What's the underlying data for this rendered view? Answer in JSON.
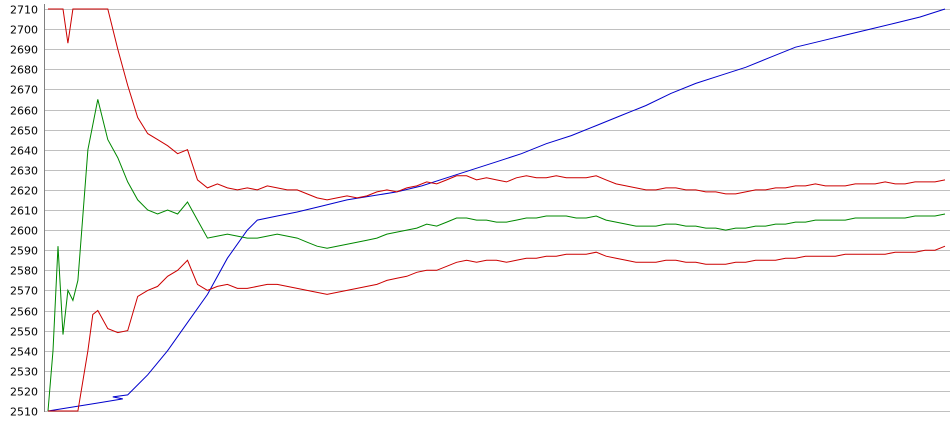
{
  "chart_data": {
    "type": "line",
    "title": "",
    "xlabel": "",
    "ylabel": "",
    "ylim": [
      2510,
      2710
    ],
    "xlim": [
      0,
      180
    ],
    "grid": true,
    "yticks": [
      2510,
      2520,
      2530,
      2540,
      2550,
      2560,
      2570,
      2580,
      2590,
      2600,
      2610,
      2620,
      2630,
      2640,
      2650,
      2660,
      2670,
      2680,
      2690,
      2700,
      2710
    ],
    "series": [
      {
        "color": "#0000cc",
        "points": [
          [
            0,
            2510
          ],
          [
            5,
            2512
          ],
          [
            10,
            2514
          ],
          [
            15,
            2516
          ],
          [
            13,
            2517
          ],
          [
            16,
            2518
          ],
          [
            20,
            2528
          ],
          [
            24,
            2540
          ],
          [
            28,
            2554
          ],
          [
            32,
            2568
          ],
          [
            36,
            2586
          ],
          [
            40,
            2600
          ],
          [
            42,
            2605
          ],
          [
            46,
            2607
          ],
          [
            50,
            2609
          ],
          [
            55,
            2612
          ],
          [
            60,
            2615
          ],
          [
            65,
            2617
          ],
          [
            70,
            2619
          ],
          [
            75,
            2622
          ],
          [
            80,
            2626
          ],
          [
            85,
            2630
          ],
          [
            90,
            2634
          ],
          [
            95,
            2638
          ],
          [
            100,
            2643
          ],
          [
            105,
            2647
          ],
          [
            110,
            2652
          ],
          [
            115,
            2657
          ],
          [
            120,
            2662
          ],
          [
            125,
            2668
          ],
          [
            130,
            2673
          ],
          [
            135,
            2677
          ],
          [
            140,
            2681
          ],
          [
            145,
            2686
          ],
          [
            150,
            2691
          ],
          [
            155,
            2694
          ],
          [
            160,
            2697
          ],
          [
            165,
            2700
          ],
          [
            170,
            2703
          ],
          [
            175,
            2706
          ],
          [
            180,
            2710
          ]
        ]
      },
      {
        "color": "#cc0000",
        "points": [
          [
            0,
            2710
          ],
          [
            3,
            2710
          ],
          [
            4,
            2693
          ],
          [
            5,
            2710
          ],
          [
            12,
            2710
          ],
          [
            14,
            2690
          ],
          [
            16,
            2672
          ],
          [
            18,
            2656
          ],
          [
            20,
            2648
          ],
          [
            22,
            2645
          ],
          [
            24,
            2642
          ],
          [
            26,
            2638
          ],
          [
            28,
            2640
          ],
          [
            30,
            2625
          ],
          [
            32,
            2621
          ],
          [
            34,
            2623
          ],
          [
            36,
            2621
          ],
          [
            38,
            2620
          ],
          [
            40,
            2621
          ],
          [
            42,
            2620
          ],
          [
            44,
            2622
          ],
          [
            46,
            2621
          ],
          [
            48,
            2620
          ],
          [
            50,
            2620
          ],
          [
            52,
            2618
          ],
          [
            54,
            2616
          ],
          [
            56,
            2615
          ],
          [
            58,
            2616
          ],
          [
            60,
            2617
          ],
          [
            62,
            2616
          ],
          [
            64,
            2617
          ],
          [
            66,
            2619
          ],
          [
            68,
            2620
          ],
          [
            70,
            2619
          ],
          [
            72,
            2621
          ],
          [
            74,
            2622
          ],
          [
            76,
            2624
          ],
          [
            78,
            2623
          ],
          [
            80,
            2625
          ],
          [
            82,
            2627
          ],
          [
            84,
            2627
          ],
          [
            86,
            2625
          ],
          [
            88,
            2626
          ],
          [
            90,
            2625
          ],
          [
            92,
            2624
          ],
          [
            94,
            2626
          ],
          [
            96,
            2627
          ],
          [
            98,
            2626
          ],
          [
            100,
            2626
          ],
          [
            102,
            2627
          ],
          [
            104,
            2626
          ],
          [
            106,
            2626
          ],
          [
            108,
            2626
          ],
          [
            110,
            2627
          ],
          [
            112,
            2625
          ],
          [
            114,
            2623
          ],
          [
            116,
            2622
          ],
          [
            118,
            2621
          ],
          [
            120,
            2620
          ],
          [
            122,
            2620
          ],
          [
            124,
            2621
          ],
          [
            126,
            2621
          ],
          [
            128,
            2620
          ],
          [
            130,
            2620
          ],
          [
            132,
            2619
          ],
          [
            134,
            2619
          ],
          [
            136,
            2618
          ],
          [
            138,
            2618
          ],
          [
            140,
            2619
          ],
          [
            142,
            2620
          ],
          [
            144,
            2620
          ],
          [
            146,
            2621
          ],
          [
            148,
            2621
          ],
          [
            150,
            2622
          ],
          [
            152,
            2622
          ],
          [
            154,
            2623
          ],
          [
            156,
            2622
          ],
          [
            158,
            2622
          ],
          [
            160,
            2622
          ],
          [
            162,
            2623
          ],
          [
            164,
            2623
          ],
          [
            166,
            2623
          ],
          [
            168,
            2624
          ],
          [
            170,
            2623
          ],
          [
            172,
            2623
          ],
          [
            174,
            2624
          ],
          [
            176,
            2624
          ],
          [
            178,
            2624
          ],
          [
            180,
            2625
          ]
        ]
      },
      {
        "color": "#008800",
        "points": [
          [
            0,
            2510
          ],
          [
            1,
            2540
          ],
          [
            2,
            2592
          ],
          [
            3,
            2548
          ],
          [
            4,
            2570
          ],
          [
            5,
            2565
          ],
          [
            6,
            2575
          ],
          [
            8,
            2640
          ],
          [
            10,
            2665
          ],
          [
            12,
            2645
          ],
          [
            14,
            2636
          ],
          [
            16,
            2624
          ],
          [
            18,
            2615
          ],
          [
            20,
            2610
          ],
          [
            22,
            2608
          ],
          [
            24,
            2610
          ],
          [
            26,
            2608
          ],
          [
            28,
            2614
          ],
          [
            30,
            2605
          ],
          [
            32,
            2596
          ],
          [
            34,
            2597
          ],
          [
            36,
            2598
          ],
          [
            38,
            2597
          ],
          [
            40,
            2596
          ],
          [
            42,
            2596
          ],
          [
            44,
            2597
          ],
          [
            46,
            2598
          ],
          [
            48,
            2597
          ],
          [
            50,
            2596
          ],
          [
            52,
            2594
          ],
          [
            54,
            2592
          ],
          [
            56,
            2591
          ],
          [
            58,
            2592
          ],
          [
            60,
            2593
          ],
          [
            62,
            2594
          ],
          [
            64,
            2595
          ],
          [
            66,
            2596
          ],
          [
            68,
            2598
          ],
          [
            70,
            2599
          ],
          [
            72,
            2600
          ],
          [
            74,
            2601
          ],
          [
            76,
            2603
          ],
          [
            78,
            2602
          ],
          [
            80,
            2604
          ],
          [
            82,
            2606
          ],
          [
            84,
            2606
          ],
          [
            86,
            2605
          ],
          [
            88,
            2605
          ],
          [
            90,
            2604
          ],
          [
            92,
            2604
          ],
          [
            94,
            2605
          ],
          [
            96,
            2606
          ],
          [
            98,
            2606
          ],
          [
            100,
            2607
          ],
          [
            102,
            2607
          ],
          [
            104,
            2607
          ],
          [
            106,
            2606
          ],
          [
            108,
            2606
          ],
          [
            110,
            2607
          ],
          [
            112,
            2605
          ],
          [
            114,
            2604
          ],
          [
            116,
            2603
          ],
          [
            118,
            2602
          ],
          [
            120,
            2602
          ],
          [
            122,
            2602
          ],
          [
            124,
            2603
          ],
          [
            126,
            2603
          ],
          [
            128,
            2602
          ],
          [
            130,
            2602
          ],
          [
            132,
            2601
          ],
          [
            134,
            2601
          ],
          [
            136,
            2600
          ],
          [
            138,
            2601
          ],
          [
            140,
            2601
          ],
          [
            142,
            2602
          ],
          [
            144,
            2602
          ],
          [
            146,
            2603
          ],
          [
            148,
            2603
          ],
          [
            150,
            2604
          ],
          [
            152,
            2604
          ],
          [
            154,
            2605
          ],
          [
            156,
            2605
          ],
          [
            158,
            2605
          ],
          [
            160,
            2605
          ],
          [
            162,
            2606
          ],
          [
            164,
            2606
          ],
          [
            166,
            2606
          ],
          [
            168,
            2606
          ],
          [
            170,
            2606
          ],
          [
            172,
            2606
          ],
          [
            174,
            2607
          ],
          [
            176,
            2607
          ],
          [
            178,
            2607
          ],
          [
            180,
            2608
          ]
        ]
      },
      {
        "color": "#cc0000",
        "points": [
          [
            0,
            2510
          ],
          [
            6,
            2510
          ],
          [
            8,
            2540
          ],
          [
            9,
            2558
          ],
          [
            10,
            2560
          ],
          [
            12,
            2551
          ],
          [
            14,
            2549
          ],
          [
            16,
            2550
          ],
          [
            18,
            2567
          ],
          [
            20,
            2570
          ],
          [
            22,
            2572
          ],
          [
            24,
            2577
          ],
          [
            26,
            2580
          ],
          [
            28,
            2585
          ],
          [
            30,
            2573
          ],
          [
            32,
            2570
          ],
          [
            34,
            2572
          ],
          [
            36,
            2573
          ],
          [
            38,
            2571
          ],
          [
            40,
            2571
          ],
          [
            42,
            2572
          ],
          [
            44,
            2573
          ],
          [
            46,
            2573
          ],
          [
            48,
            2572
          ],
          [
            50,
            2571
          ],
          [
            52,
            2570
          ],
          [
            54,
            2569
          ],
          [
            56,
            2568
          ],
          [
            58,
            2569
          ],
          [
            60,
            2570
          ],
          [
            62,
            2571
          ],
          [
            64,
            2572
          ],
          [
            66,
            2573
          ],
          [
            68,
            2575
          ],
          [
            70,
            2576
          ],
          [
            72,
            2577
          ],
          [
            74,
            2579
          ],
          [
            76,
            2580
          ],
          [
            78,
            2580
          ],
          [
            80,
            2582
          ],
          [
            82,
            2584
          ],
          [
            84,
            2585
          ],
          [
            86,
            2584
          ],
          [
            88,
            2585
          ],
          [
            90,
            2585
          ],
          [
            92,
            2584
          ],
          [
            94,
            2585
          ],
          [
            96,
            2586
          ],
          [
            98,
            2586
          ],
          [
            100,
            2587
          ],
          [
            102,
            2587
          ],
          [
            104,
            2588
          ],
          [
            106,
            2588
          ],
          [
            108,
            2588
          ],
          [
            110,
            2589
          ],
          [
            112,
            2587
          ],
          [
            114,
            2586
          ],
          [
            116,
            2585
          ],
          [
            118,
            2584
          ],
          [
            120,
            2584
          ],
          [
            122,
            2584
          ],
          [
            124,
            2585
          ],
          [
            126,
            2585
          ],
          [
            128,
            2584
          ],
          [
            130,
            2584
          ],
          [
            132,
            2583
          ],
          [
            134,
            2583
          ],
          [
            136,
            2583
          ],
          [
            138,
            2584
          ],
          [
            140,
            2584
          ],
          [
            142,
            2585
          ],
          [
            144,
            2585
          ],
          [
            146,
            2585
          ],
          [
            148,
            2586
          ],
          [
            150,
            2586
          ],
          [
            152,
            2587
          ],
          [
            154,
            2587
          ],
          [
            156,
            2587
          ],
          [
            158,
            2587
          ],
          [
            160,
            2588
          ],
          [
            162,
            2588
          ],
          [
            164,
            2588
          ],
          [
            166,
            2588
          ],
          [
            168,
            2588
          ],
          [
            170,
            2589
          ],
          [
            172,
            2589
          ],
          [
            174,
            2589
          ],
          [
            176,
            2590
          ],
          [
            178,
            2590
          ],
          [
            180,
            2592
          ]
        ]
      }
    ]
  }
}
